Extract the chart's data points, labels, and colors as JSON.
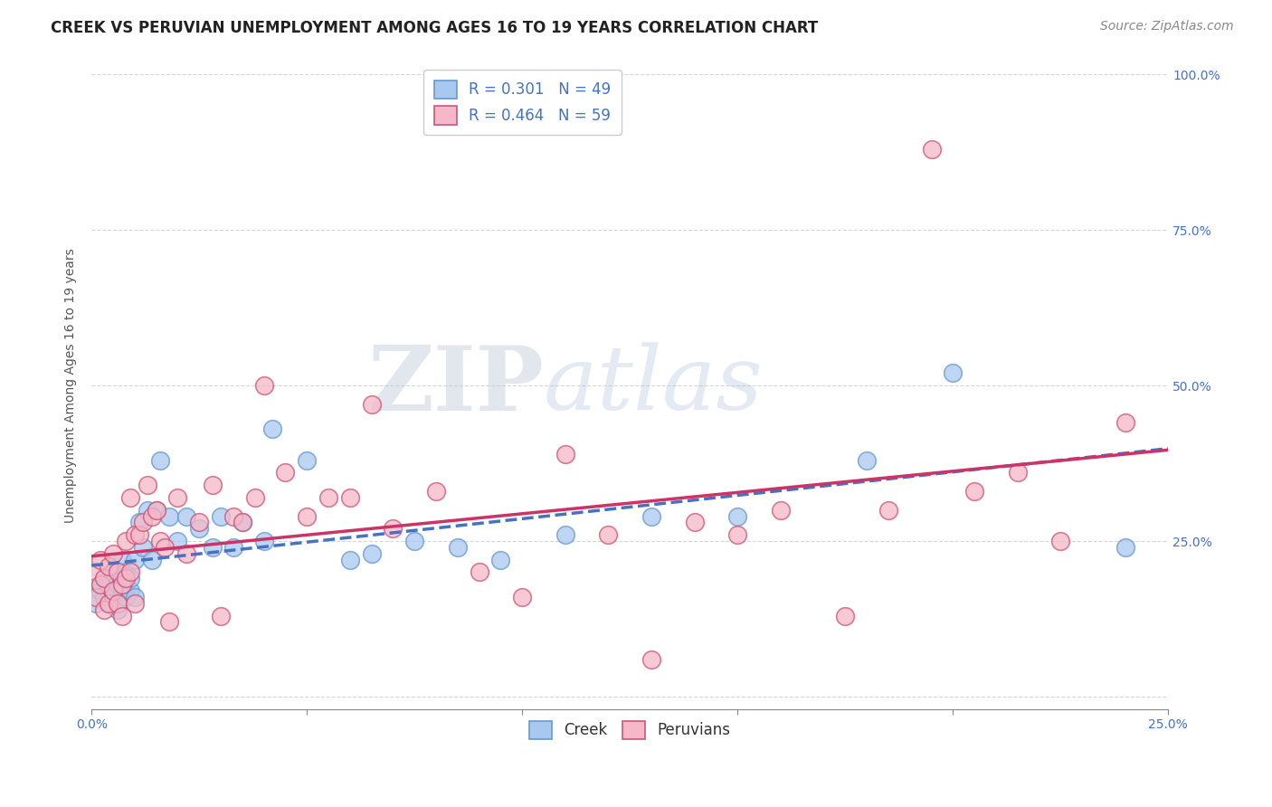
{
  "title": "CREEK VS PERUVIAN UNEMPLOYMENT AMONG AGES 16 TO 19 YEARS CORRELATION CHART",
  "source": "Source: ZipAtlas.com",
  "ylabel": "Unemployment Among Ages 16 to 19 years",
  "xlim": [
    0.0,
    0.25
  ],
  "ylim": [
    -0.02,
    1.02
  ],
  "creek_color": "#a8c8f0",
  "creek_edge_color": "#6699cc",
  "peruvian_color": "#f5b8c8",
  "peruvian_edge_color": "#cc5577",
  "creek_line_color": "#4472c4",
  "peruvian_line_color": "#cc3366",
  "background_color": "#ffffff",
  "grid_color": "#cccccc",
  "legend_color": "#4472c4",
  "creek_R": 0.301,
  "creek_N": 49,
  "peruvian_R": 0.464,
  "peruvian_N": 59,
  "creek_scatter_x": [
    0.001,
    0.002,
    0.002,
    0.003,
    0.003,
    0.004,
    0.004,
    0.005,
    0.005,
    0.005,
    0.006,
    0.006,
    0.007,
    0.007,
    0.007,
    0.008,
    0.008,
    0.009,
    0.009,
    0.01,
    0.01,
    0.011,
    0.012,
    0.013,
    0.014,
    0.015,
    0.016,
    0.018,
    0.02,
    0.022,
    0.025,
    0.028,
    0.03,
    0.033,
    0.035,
    0.04,
    0.042,
    0.05,
    0.06,
    0.065,
    0.075,
    0.085,
    0.095,
    0.11,
    0.13,
    0.15,
    0.18,
    0.2,
    0.24
  ],
  "creek_scatter_y": [
    0.15,
    0.17,
    0.18,
    0.16,
    0.19,
    0.15,
    0.18,
    0.16,
    0.17,
    0.2,
    0.14,
    0.18,
    0.17,
    0.19,
    0.22,
    0.16,
    0.2,
    0.17,
    0.19,
    0.16,
    0.22,
    0.28,
    0.24,
    0.3,
    0.22,
    0.3,
    0.38,
    0.29,
    0.25,
    0.29,
    0.27,
    0.24,
    0.29,
    0.24,
    0.28,
    0.25,
    0.43,
    0.38,
    0.22,
    0.23,
    0.25,
    0.24,
    0.22,
    0.26,
    0.29,
    0.29,
    0.38,
    0.52,
    0.24
  ],
  "peruvian_scatter_x": [
    0.001,
    0.001,
    0.002,
    0.002,
    0.003,
    0.003,
    0.004,
    0.004,
    0.005,
    0.005,
    0.006,
    0.006,
    0.007,
    0.007,
    0.008,
    0.008,
    0.009,
    0.009,
    0.01,
    0.01,
    0.011,
    0.012,
    0.013,
    0.014,
    0.015,
    0.016,
    0.017,
    0.018,
    0.02,
    0.022,
    0.025,
    0.028,
    0.03,
    0.033,
    0.035,
    0.038,
    0.04,
    0.045,
    0.05,
    0.055,
    0.06,
    0.065,
    0.07,
    0.08,
    0.09,
    0.1,
    0.11,
    0.12,
    0.13,
    0.14,
    0.15,
    0.16,
    0.175,
    0.185,
    0.195,
    0.205,
    0.215,
    0.225,
    0.24
  ],
  "peruvian_scatter_y": [
    0.16,
    0.2,
    0.18,
    0.22,
    0.14,
    0.19,
    0.15,
    0.21,
    0.17,
    0.23,
    0.15,
    0.2,
    0.13,
    0.18,
    0.25,
    0.19,
    0.32,
    0.2,
    0.15,
    0.26,
    0.26,
    0.28,
    0.34,
    0.29,
    0.3,
    0.25,
    0.24,
    0.12,
    0.32,
    0.23,
    0.28,
    0.34,
    0.13,
    0.29,
    0.28,
    0.32,
    0.5,
    0.36,
    0.29,
    0.32,
    0.32,
    0.47,
    0.27,
    0.33,
    0.2,
    0.16,
    0.39,
    0.26,
    0.06,
    0.28,
    0.26,
    0.3,
    0.13,
    0.3,
    0.88,
    0.33,
    0.36,
    0.25,
    0.44
  ],
  "watermark_zip": "ZIP",
  "watermark_atlas": "atlas",
  "title_fontsize": 12,
  "axis_label_fontsize": 10,
  "tick_fontsize": 10,
  "legend_fontsize": 12,
  "source_fontsize": 10
}
